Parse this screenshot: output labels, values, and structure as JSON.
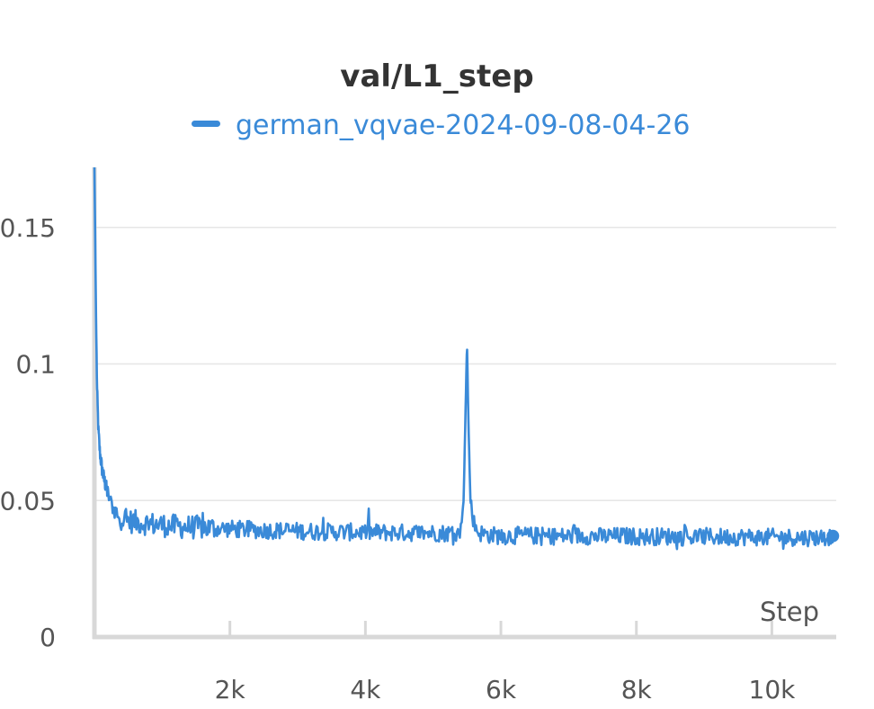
{
  "chart_data": {
    "type": "line",
    "title": "val/L1_step",
    "xlabel": "Step",
    "ylabel": "",
    "xlim": [
      0,
      10950
    ],
    "ylim": [
      0,
      0.172
    ],
    "xticks": [
      2000,
      4000,
      6000,
      8000,
      10000
    ],
    "xtick_labels": [
      "2k",
      "4k",
      "6k",
      "8k",
      "10k"
    ],
    "yticks": [
      0,
      0.05,
      0.1,
      0.15
    ],
    "ytick_labels": [
      "0",
      "0.05",
      "0.1",
      "0.15"
    ],
    "grid": "horizontal",
    "legend": "top-center",
    "color": "#3a8ad8",
    "end_marker": true,
    "series": [
      {
        "name": "german_vqvae-2024-09-08-04-26",
        "x": [
          0,
          10,
          25,
          40,
          60,
          80,
          110,
          140,
          180,
          230,
          300,
          400,
          500,
          650,
          800,
          1000,
          1200,
          1500,
          1800,
          2100,
          2400,
          2700,
          3000,
          3300,
          3600,
          3900,
          4200,
          4500,
          4800,
          5100,
          5400,
          5450,
          5480,
          5500,
          5520,
          5550,
          5600,
          5650,
          5700,
          5800,
          6000,
          6300,
          6600,
          6900,
          7200,
          7500,
          7800,
          8100,
          8400,
          8700,
          9000,
          9300,
          9600,
          9900,
          10200,
          10500,
          10800,
          10900
        ],
        "y": [
          0.172,
          0.15,
          0.115,
          0.09,
          0.075,
          0.068,
          0.062,
          0.058,
          0.054,
          0.05,
          0.046,
          0.0435,
          0.0425,
          0.042,
          0.0415,
          0.041,
          0.0405,
          0.0402,
          0.0398,
          0.0395,
          0.0392,
          0.039,
          0.0388,
          0.0386,
          0.0385,
          0.0384,
          0.0383,
          0.0382,
          0.0382,
          0.0381,
          0.038,
          0.05,
          0.085,
          0.108,
          0.08,
          0.05,
          0.042,
          0.039,
          0.038,
          0.0375,
          0.037,
          0.0372,
          0.037,
          0.0369,
          0.0371,
          0.0368,
          0.037,
          0.0367,
          0.0369,
          0.0366,
          0.0368,
          0.0366,
          0.0367,
          0.0365,
          0.0366,
          0.0364,
          0.0366,
          0.037
        ]
      }
    ]
  }
}
